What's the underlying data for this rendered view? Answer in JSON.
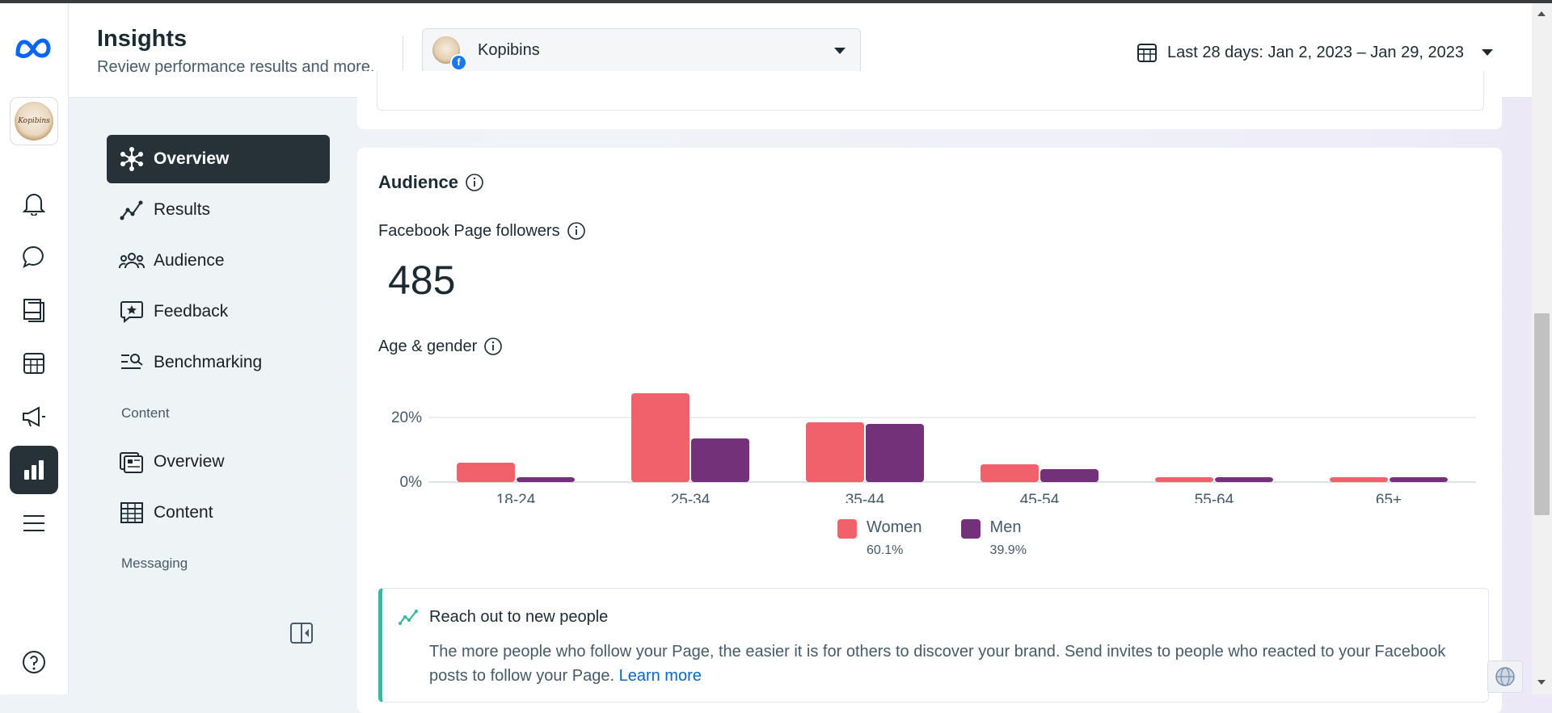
{
  "header": {
    "title": "Insights",
    "subtitle": "Review performance results and more.",
    "page_selector": {
      "name": "Kopibins",
      "badge": "f"
    },
    "date_range": "Last 28 days: Jan 2, 2023 – Jan 29, 2023"
  },
  "rail": {
    "items": [
      "meta-logo-icon",
      "page-avatar",
      "notifications-icon",
      "messages-icon",
      "posts-icon",
      "planner-icon",
      "ads-icon",
      "insights-icon",
      "menu-icon",
      "help-icon"
    ],
    "active": "insights-icon",
    "avatar_text": "Kopibins"
  },
  "sidebar": {
    "items": [
      {
        "label": "Overview",
        "icon": "overview-icon",
        "active": true
      },
      {
        "label": "Results",
        "icon": "results-icon"
      },
      {
        "label": "Audience",
        "icon": "audience-icon"
      },
      {
        "label": "Feedback",
        "icon": "feedback-icon"
      },
      {
        "label": "Benchmarking",
        "icon": "benchmarking-icon"
      }
    ],
    "content_section": "Content",
    "content_items": [
      {
        "label": "Overview",
        "icon": "content-overview-icon"
      },
      {
        "label": "Content",
        "icon": "content-table-icon"
      }
    ],
    "messaging_section": "Messaging"
  },
  "audience": {
    "title": "Audience",
    "followers_label": "Facebook Page followers",
    "followers_value": "485",
    "age_gender_label": "Age & gender"
  },
  "chart_data": {
    "type": "bar",
    "categories": [
      "18-24",
      "25-34",
      "35-44",
      "45-54",
      "55-64",
      "65+"
    ],
    "series": [
      {
        "name": "Women",
        "values": [
          6,
          27.5,
          18.5,
          5.5,
          1.5,
          1.5
        ],
        "color": "#f0616b",
        "share": "60.1%"
      },
      {
        "name": "Men",
        "values": [
          1.5,
          13.5,
          18,
          4,
          1.5,
          1.5
        ],
        "color": "#73317a",
        "share": "39.9%"
      }
    ],
    "yticks": [
      "0%",
      "20%"
    ],
    "ylim": [
      0,
      30
    ],
    "grid": true,
    "legend": "bottom-center"
  },
  "reach": {
    "title": "Reach out to new people",
    "body": "The more people who follow your Page, the easier it is for others to discover your brand. Send invites to people who reacted to your Facebook posts to follow your Page. ",
    "link": "Learn more"
  },
  "colors": {
    "accent_dark": "#263238",
    "women": "#f0616b",
    "men": "#73317a",
    "teal": "#36b89f",
    "link": "#0866c6"
  }
}
